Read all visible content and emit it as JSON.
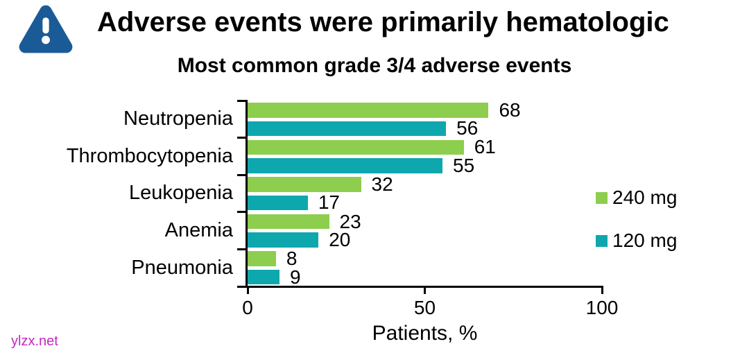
{
  "page": {
    "title": "Adverse events were primarily hematologic",
    "watermark": "ylzx.net"
  },
  "chart_data": {
    "type": "bar",
    "orientation": "horizontal",
    "title": "Most common grade 3/4 adverse events",
    "categories": [
      "Neutropenia",
      "Thrombocytopenia",
      "Leukopenia",
      "Anemia",
      "Pneumonia"
    ],
    "series": [
      {
        "name": "240 mg",
        "color": "#8DCE4E",
        "values": [
          68,
          61,
          32,
          23,
          8
        ]
      },
      {
        "name": "120 mg",
        "color": "#0FA7AE",
        "values": [
          56,
          55,
          17,
          20,
          9
        ]
      }
    ],
    "xlabel": "Patients, %",
    "xlim": [
      0,
      100
    ],
    "xticks": [
      0,
      50,
      100
    ],
    "data_labels": true,
    "legend_position": "right",
    "grid": false
  },
  "colors": {
    "warning_icon": "#1A5B97",
    "axis": "#000000",
    "text": "#000000",
    "watermark": "#C327C3"
  }
}
